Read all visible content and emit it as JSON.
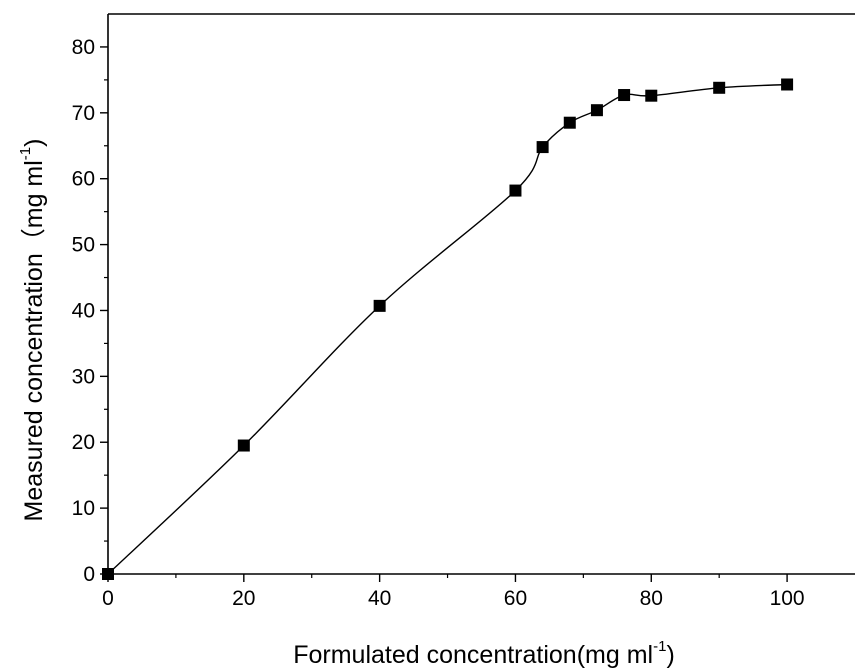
{
  "chart_data": {
    "type": "line",
    "title": "",
    "xlabel": {
      "main": "Formulated concentration(mg ml",
      "sup": "-1",
      "end": ")"
    },
    "ylabel": {
      "main": "Measured concentration（mg ml",
      "sup": "-1",
      "end": ")"
    },
    "xlim": [
      0,
      110
    ],
    "ylim": [
      0,
      85
    ],
    "x_ticks": [
      0,
      20,
      40,
      60,
      80,
      100
    ],
    "y_ticks": [
      0,
      10,
      20,
      30,
      40,
      50,
      60,
      70,
      80
    ],
    "marker": "square",
    "grid": false,
    "series": [
      {
        "x": [
          0,
          20,
          40,
          60,
          64,
          68,
          72,
          76,
          80,
          90,
          100
        ],
        "y": [
          0,
          19.5,
          40.7,
          58.2,
          64.8,
          68.5,
          70.4,
          72.7,
          72.6,
          73.8,
          74.3
        ]
      }
    ]
  }
}
